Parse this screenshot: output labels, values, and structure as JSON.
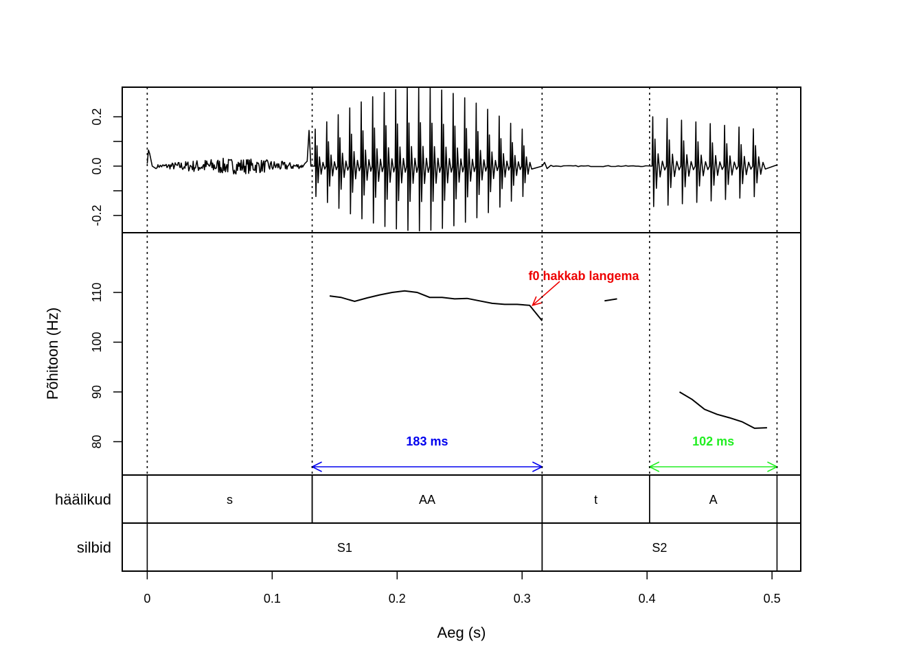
{
  "chart_data": {
    "type": "line",
    "title": "",
    "xlabel": "Aeg (s)",
    "x_ticks": [
      "0",
      "0.1",
      "0.2",
      "0.3",
      "0.4",
      "0.5"
    ],
    "xlim": [
      -0.02,
      0.523
    ],
    "waveform": {
      "ylabel": "",
      "y_ticks": [
        "-0.2",
        "0.0",
        "0.2"
      ],
      "ylim": [
        -0.27,
        0.32
      ]
    },
    "f0": {
      "ylabel": "Põhitoon (Hz)",
      "y_ticks": [
        "80",
        "90",
        "100",
        "110"
      ],
      "ylim": [
        73.3,
        122
      ],
      "series": [
        {
          "points": [
            [
              0.146,
              109.3
            ],
            [
              0.155,
              109.0
            ],
            [
              0.166,
              108.2
            ],
            [
              0.176,
              108.9
            ],
            [
              0.186,
              109.5
            ],
            [
              0.196,
              110.0
            ],
            [
              0.206,
              110.3
            ],
            [
              0.216,
              110.0
            ],
            [
              0.226,
              109.0
            ],
            [
              0.236,
              109.0
            ],
            [
              0.246,
              108.7
            ],
            [
              0.256,
              108.8
            ],
            [
              0.266,
              108.3
            ],
            [
              0.276,
              107.8
            ],
            [
              0.286,
              107.6
            ],
            [
              0.296,
              107.6
            ],
            [
              0.306,
              107.4
            ],
            [
              0.316,
              104.3
            ]
          ]
        },
        {
          "points": [
            [
              0.366,
              108.3
            ],
            [
              0.376,
              108.7
            ]
          ]
        },
        {
          "points": [
            [
              0.426,
              90.0
            ],
            [
              0.436,
              88.5
            ],
            [
              0.446,
              86.5
            ],
            [
              0.456,
              85.5
            ],
            [
              0.466,
              84.8
            ],
            [
              0.476,
              84.0
            ],
            [
              0.486,
              82.7
            ],
            [
              0.496,
              82.8
            ]
          ]
        }
      ]
    },
    "boundaries": [
      0.0,
      0.132,
      0.316,
      0.402,
      0.504
    ],
    "tiers": [
      {
        "name": "häälikud",
        "segments": [
          {
            "label": "s",
            "start": 0.0,
            "end": 0.132
          },
          {
            "label": "AA",
            "start": 0.132,
            "end": 0.316
          },
          {
            "label": "t",
            "start": 0.316,
            "end": 0.402
          },
          {
            "label": "A",
            "start": 0.402,
            "end": 0.504
          }
        ]
      },
      {
        "name": "silbid",
        "segments": [
          {
            "label": "S1",
            "start": 0.0,
            "end": 0.316
          },
          {
            "label": "S2",
            "start": 0.316,
            "end": 0.504
          }
        ]
      }
    ],
    "annotations": [
      {
        "text": "183 ms",
        "start": 0.132,
        "end": 0.316,
        "color": "#0000ee"
      },
      {
        "text": "102 ms",
        "start": 0.402,
        "end": 0.504,
        "color": "#22ee22"
      },
      {
        "text": "f0 hakkab langema",
        "target": [
          0.31,
          107.4
        ],
        "color": "#ee0000"
      }
    ]
  }
}
